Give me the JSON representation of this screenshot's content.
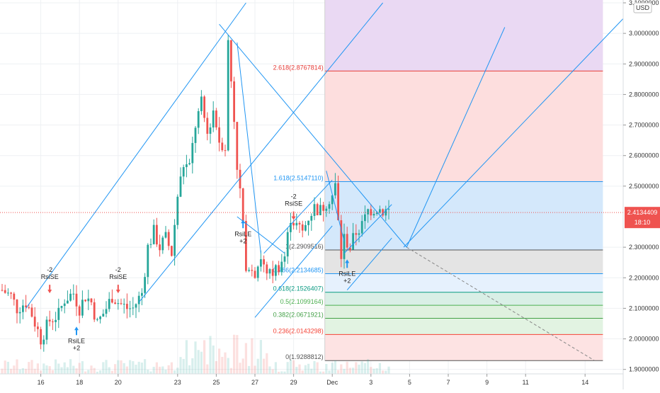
{
  "colors": {
    "background": "#ffffff",
    "grid": "#eef0f3",
    "bull": "#26a69a",
    "bear": "#ef5350",
    "trendline": "#2196f3",
    "axis_text": "#333333",
    "price_badge": "#ef5350",
    "marker_long": "#2196f3",
    "marker_short": "#ef5350"
  },
  "chart_data": {
    "type": "candlestick",
    "currency_label": "USD",
    "y_axis": {
      "range": [
        1.89,
        3.1
      ],
      "ticks": [
        "3.1000000",
        "3.0000000",
        "2.9000000",
        "2.8000000",
        "2.7000000",
        "2.6000000",
        "2.5000000",
        "2.3000000",
        "2.2000000",
        "2.1000000",
        "2.0000000",
        "1.9000000"
      ]
    },
    "x_axis": {
      "ticks": [
        {
          "label": "16",
          "i": 13
        },
        {
          "label": "18",
          "i": 26
        },
        {
          "label": "20",
          "i": 39
        },
        {
          "label": "23",
          "i": 59
        },
        {
          "label": "25",
          "i": 72
        },
        {
          "label": "27",
          "i": 85
        },
        {
          "label": "29",
          "i": 98
        },
        {
          "label": "Dec",
          "i": 111
        },
        {
          "label": "3",
          "i": 124
        },
        {
          "label": "5",
          "i": 137
        },
        {
          "label": "7",
          "i": 150
        },
        {
          "label": "9",
          "i": 163
        },
        {
          "label": "11",
          "i": 176
        },
        {
          "label": "14",
          "i": 196
        }
      ]
    },
    "last_price": "2.4134409",
    "countdown": "18:10",
    "close_path": [
      [
        0,
        2.16
      ],
      [
        3,
        2.14
      ],
      [
        5,
        2.1
      ],
      [
        8,
        2.12
      ],
      [
        10,
        2.08
      ],
      [
        13,
        2.0
      ],
      [
        16,
        2.06
      ],
      [
        19,
        2.08
      ],
      [
        21,
        2.13
      ],
      [
        24,
        2.15
      ],
      [
        26,
        2.1
      ],
      [
        28,
        2.14
      ],
      [
        30,
        2.12
      ],
      [
        32,
        2.05
      ],
      [
        35,
        2.1
      ],
      [
        37,
        2.14
      ],
      [
        39,
        2.12
      ],
      [
        42,
        2.1
      ],
      [
        44,
        2.1
      ],
      [
        47,
        2.15
      ],
      [
        49,
        2.3
      ],
      [
        51,
        2.35
      ],
      [
        53,
        2.3
      ],
      [
        55,
        2.33
      ],
      [
        57,
        2.28
      ],
      [
        59,
        2.47
      ],
      [
        61,
        2.57
      ],
      [
        63,
        2.56
      ],
      [
        65,
        2.7
      ],
      [
        67,
        2.77
      ],
      [
        69,
        2.67
      ],
      [
        71,
        2.75
      ],
      [
        73,
        2.65
      ],
      [
        75,
        2.63
      ],
      [
        76,
        2.97
      ],
      [
        78,
        2.72
      ],
      [
        79,
        2.57
      ],
      [
        80,
        2.48
      ],
      [
        81,
        2.38
      ],
      [
        82,
        2.2
      ],
      [
        83,
        2.25
      ],
      [
        85,
        2.22
      ],
      [
        87,
        2.27
      ],
      [
        89,
        2.2
      ],
      [
        91,
        2.22
      ],
      [
        93,
        2.24
      ],
      [
        95,
        2.27
      ],
      [
        97,
        2.4
      ],
      [
        99,
        2.37
      ],
      [
        101,
        2.35
      ],
      [
        103,
        2.4
      ],
      [
        105,
        2.43
      ],
      [
        107,
        2.42
      ],
      [
        109,
        2.45
      ],
      [
        111,
        2.47
      ],
      [
        112,
        2.5
      ],
      [
        113,
        2.38
      ],
      [
        114,
        2.27
      ],
      [
        115,
        2.33
      ],
      [
        117,
        2.3
      ],
      [
        119,
        2.35
      ],
      [
        121,
        2.37
      ],
      [
        123,
        2.42
      ],
      [
        126,
        2.43
      ],
      [
        128,
        2.42
      ],
      [
        130,
        2.42
      ]
    ],
    "fib_levels": [
      {
        "ratio": 2.618,
        "price": 2.8767814,
        "label": "2.618(2.8767814)",
        "fill": "#fddede",
        "color": "#e53935"
      },
      {
        "ratio": 1.618,
        "price": 2.514711,
        "label": "1.618(2.5147110)",
        "fill": "#d4e8fb",
        "color": "#2196f3"
      },
      {
        "ratio": 1,
        "price": 2.2909516,
        "label": "1(2.2909516)",
        "fill": "#e4e4e4",
        "color": "#555555"
      },
      {
        "ratio": 0.786,
        "price": 2.2134685,
        "label": "0.786(2.2134685)",
        "fill": "#e6f1fd",
        "color": "#2196f3"
      },
      {
        "ratio": 0.618,
        "price": 2.1526407,
        "label": "0.618(2.1526407)",
        "fill": "#d9efe6",
        "color": "#089981"
      },
      {
        "ratio": 0.5,
        "price": 2.1099164,
        "label": "0.5(2.1099164)",
        "fill": "#dff1df",
        "color": "#4caf50"
      },
      {
        "ratio": 0.382,
        "price": 2.0671921,
        "label": "0.382(2.0671921)",
        "fill": "#e2f3e2",
        "color": "#43a047"
      },
      {
        "ratio": 0.236,
        "price": 2.0143298,
        "label": "0.236(2.0143298)",
        "fill": "#fde3e3",
        "color": "#f44336"
      },
      {
        "ratio": 0,
        "price": 1.9288812,
        "label": "0(1.9288812)",
        "fill": "",
        "color": "#555555"
      }
    ],
    "fib_top_fill": {
      "to_price": 3.1,
      "fill": "#ead9f3"
    },
    "fib_range_i": [
      108.5,
      202
    ],
    "signals": [
      {
        "type": "short",
        "text": "RsiSE",
        "count": "-2",
        "i": 16,
        "price": 2.14
      },
      {
        "type": "long",
        "text": "RsiLE",
        "count": "+2",
        "i": 25,
        "price": 2.04
      },
      {
        "type": "short",
        "text": "RsiSE",
        "count": "-2",
        "i": 39,
        "price": 2.14
      },
      {
        "type": "long",
        "text": "RsiLE",
        "count": "+2",
        "i": 81,
        "price": 2.39
      },
      {
        "type": "short",
        "text": "RsiSE",
        "count": "-2",
        "i": 98,
        "price": 2.38
      },
      {
        "type": "long",
        "text": "RsiLE",
        "count": "+2",
        "i": 116,
        "price": 2.26
      }
    ],
    "trendlines": [
      {
        "from": [
          8,
          2.1
        ],
        "to": [
          82,
          3.1
        ]
      },
      {
        "from": [
          46,
          2.12
        ],
        "to": [
          128,
          3.1
        ]
      },
      {
        "from": [
          73,
          3.03
        ],
        "to": [
          136,
          2.3
        ]
      },
      {
        "from": [
          136,
          2.3
        ],
        "to": [
          169,
          3.02
        ]
      },
      {
        "from": [
          135,
          2.3
        ],
        "to": [
          209,
          3.05
        ]
      },
      {
        "from": [
          79,
          2.4
        ],
        "to": [
          95,
          2.28
        ]
      },
      {
        "from": [
          85,
          2.07
        ],
        "to": [
          111,
          2.37
        ]
      },
      {
        "from": [
          88,
          2.28
        ],
        "to": [
          111,
          2.52
        ]
      },
      {
        "from": [
          116,
          2.16
        ],
        "to": [
          131,
          2.33
        ]
      },
      {
        "from": [
          115,
          2.28
        ],
        "to": [
          131,
          2.44
        ]
      },
      {
        "from": [
          79,
          2.97
        ],
        "to": [
          87,
          2.28
        ]
      },
      {
        "from": [
          109,
          2.55
        ],
        "to": [
          115,
          2.32
        ]
      }
    ],
    "projection": {
      "from": [
        136,
        2.3
      ],
      "to": [
        199,
        1.93
      ]
    }
  }
}
